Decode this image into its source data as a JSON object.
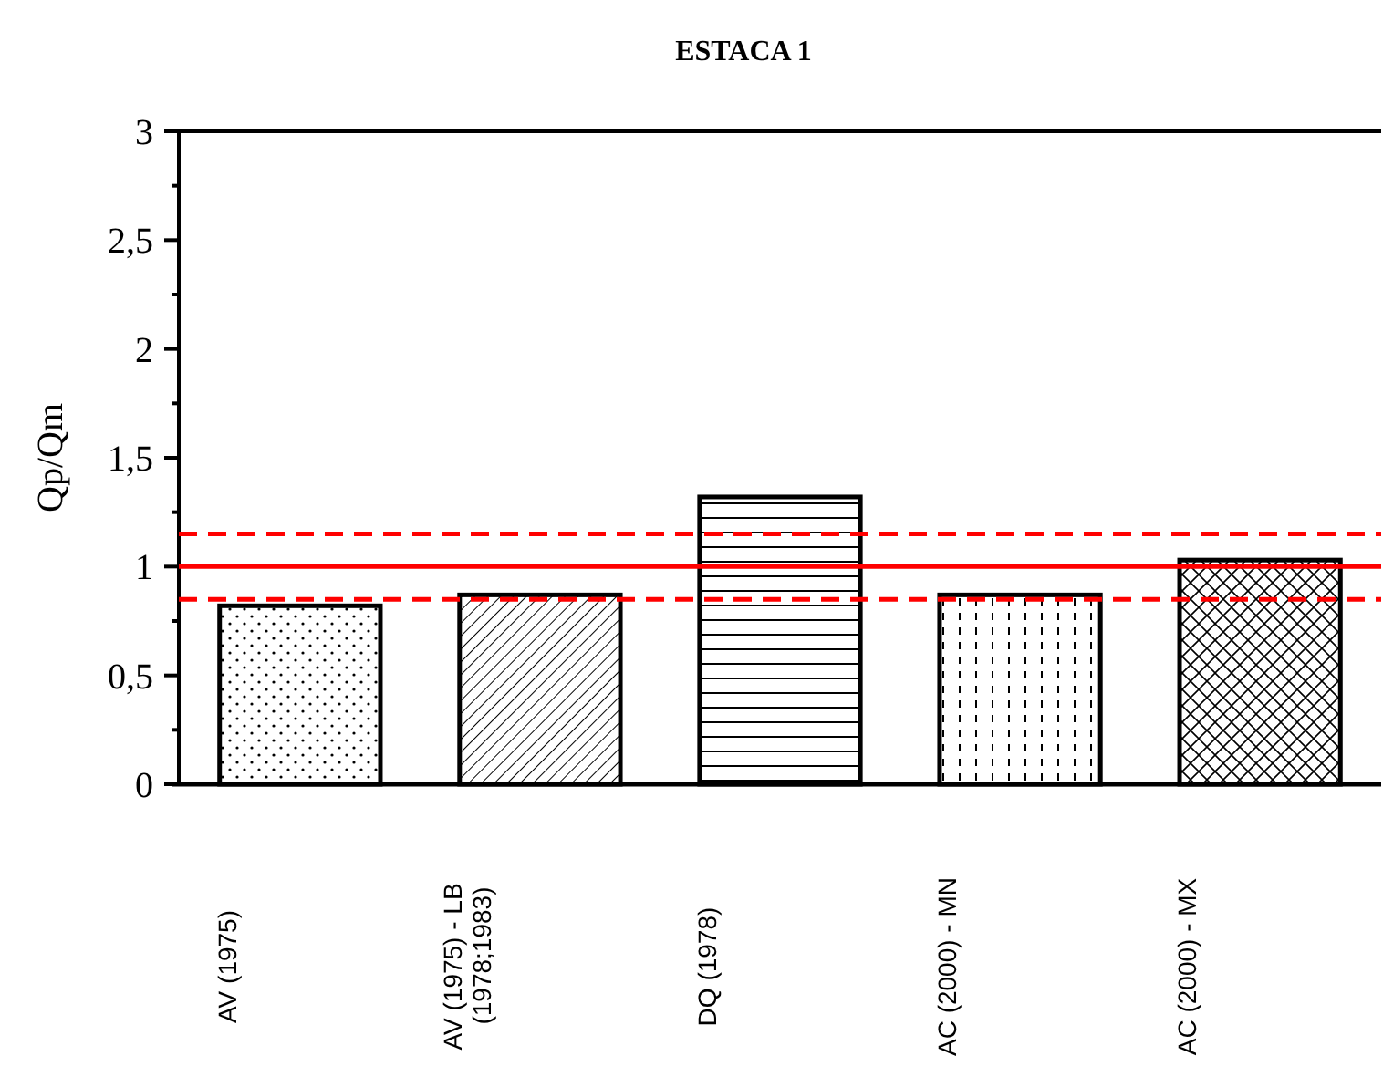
{
  "chart_data": {
    "type": "bar",
    "title": "ESTACA 1",
    "ylabel": "Qp/Qm",
    "categories": [
      "AV (1975)",
      "AV (1975) - LB (1978;1983)",
      "DQ (1978)",
      "AC (2000) - MN",
      "AC (2000) - MX"
    ],
    "values": [
      0.82,
      0.87,
      1.32,
      0.87,
      1.03
    ],
    "colors": [
      "#ffffff",
      "#ffffff",
      "#ffffff",
      "#ffffff",
      "#ffffff"
    ],
    "ylim": [
      0,
      3
    ],
    "yticks": [
      0,
      {
        "value": 0.25,
        "label": null
      },
      {
        "value": 0.5,
        "label": "0,5"
      },
      {
        "value": 0.75,
        "label": null
      },
      1,
      {
        "value": 1.25,
        "label": null
      },
      {
        "value": 1.5,
        "label": "1,5"
      },
      {
        "value": 1.75,
        "label": null
      },
      2,
      {
        "value": 2.25,
        "label": null
      },
      {
        "value": 2.5,
        "label": "2,5"
      },
      {
        "value": 2.75,
        "label": null
      },
      3
    ],
    "ref_lines": [
      {
        "axis": "y",
        "value": 1,
        "color": "#ff0000",
        "line_style": "solid"
      },
      {
        "axis": "y",
        "value": 1.15,
        "color": "#ff0000",
        "line_style": "dashed"
      },
      {
        "axis": "y",
        "value": 0.85,
        "color": "#ff0000",
        "line_style": "dashed"
      }
    ],
    "grid": false
  }
}
